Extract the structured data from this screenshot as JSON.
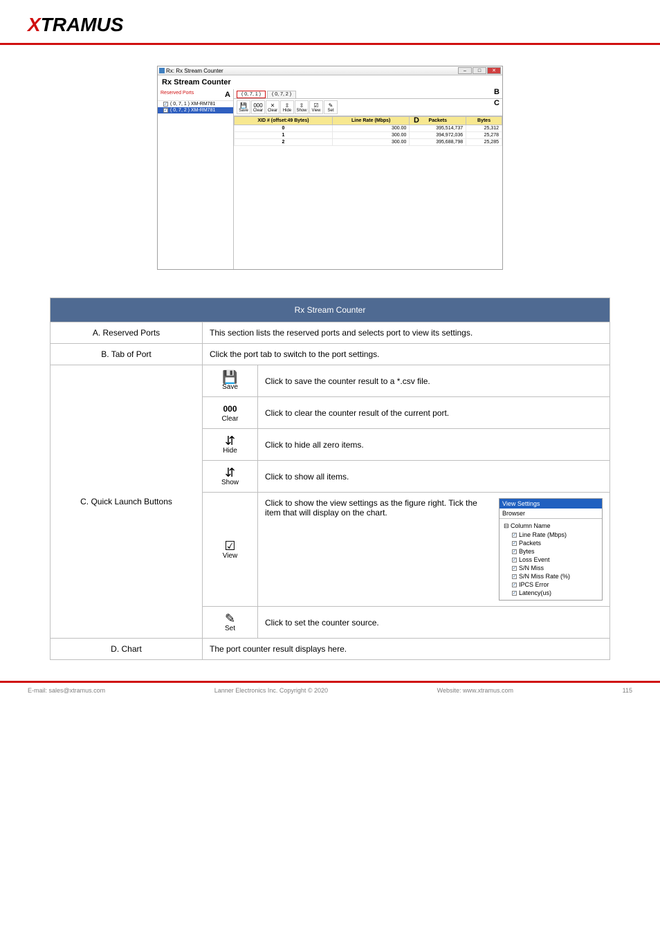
{
  "header": {
    "logo_x": "X",
    "logo_rest": "TRAMUS"
  },
  "screenshot": {
    "titlebar": {
      "title": "Rx: Rx Stream Counter"
    },
    "subtitle": "Rx Stream Counter",
    "letters": {
      "A": "A",
      "B": "B",
      "C": "C",
      "D": "D"
    },
    "sidebar": {
      "heading": "Reserved Ports",
      "items": [
        {
          "label": "( 0, 7, 1 ) XM-RM781",
          "selected": false
        },
        {
          "label": "( 0, 7, 2 ) XM-RM781",
          "selected": true
        }
      ]
    },
    "tabs": [
      {
        "label": "( 0, 7, 1 )",
        "active": true
      },
      {
        "label": "( 0, 7, 2 )",
        "active": false
      }
    ],
    "toolbar": [
      {
        "icon": "💾",
        "label": "Save"
      },
      {
        "icon": "000",
        "label": "Clear"
      },
      {
        "icon": "⨯",
        "label": "Clear"
      },
      {
        "icon": "⇳",
        "label": "Hide"
      },
      {
        "icon": "⇳",
        "label": "Show"
      },
      {
        "icon": "☑",
        "label": "View"
      },
      {
        "icon": "✎",
        "label": "Set"
      }
    ],
    "grid": {
      "columns": [
        "XID # (offset:49 Bytes)",
        "Line Rate (Mbps)",
        "Packets",
        "Bytes"
      ],
      "rows": [
        [
          "0",
          "300.00",
          "395,514,737",
          "25,312"
        ],
        [
          "1",
          "300.00",
          "394,972,036",
          "25,278"
        ],
        [
          "2",
          "300.00",
          "395,688,798",
          "25,285"
        ]
      ]
    }
  },
  "table": {
    "head": "Rx Stream Counter",
    "rows": [
      {
        "spec": "A. Reserved Ports",
        "desc_full": "This section lists the reserved ports and selects port to view its settings.",
        "subrows": []
      },
      {
        "spec": "B. Tab of Port",
        "desc_full": "Click the port tab to switch to the port settings.",
        "subrows": []
      },
      {
        "spec": "C. Quick Launch Buttons",
        "subrows": [
          {
            "icon": "save",
            "label": "Save",
            "desc": "Click to save the counter result to a *.csv file."
          },
          {
            "icon": "clear",
            "label": "Clear",
            "desc": "Click to clear the counter result of the current port."
          },
          {
            "icon": "hide",
            "label": "Hide",
            "desc": "Click to hide all zero items."
          },
          {
            "icon": "show",
            "label": "Show",
            "desc": "Click to show all items."
          },
          {
            "icon": "view",
            "label": "View",
            "desc": "Click to show the view settings as the figure right. Tick the item that will display on the chart.",
            "has_popup": true
          },
          {
            "icon": "set",
            "label": "Set",
            "desc": "Click to set the counter source."
          }
        ]
      },
      {
        "spec": "D. Chart",
        "desc_full": "The port counter result displays here.",
        "subrows": []
      }
    ]
  },
  "popup": {
    "title": "View Settings",
    "browser": "Browser",
    "root": "Column Name",
    "items": [
      "Line Rate (Mbps)",
      "Packets",
      "Bytes",
      "Loss Event",
      "S/N Miss",
      "S/N Miss Rate (%)",
      "IPCS Error",
      "Latency(us)"
    ]
  },
  "footer": {
    "left": "E-mail: sales@xtramus.com",
    "center": "Lanner Electronics Inc. Copyright © 2020",
    "right": "Website: www.xtramus.com",
    "page": "115"
  }
}
